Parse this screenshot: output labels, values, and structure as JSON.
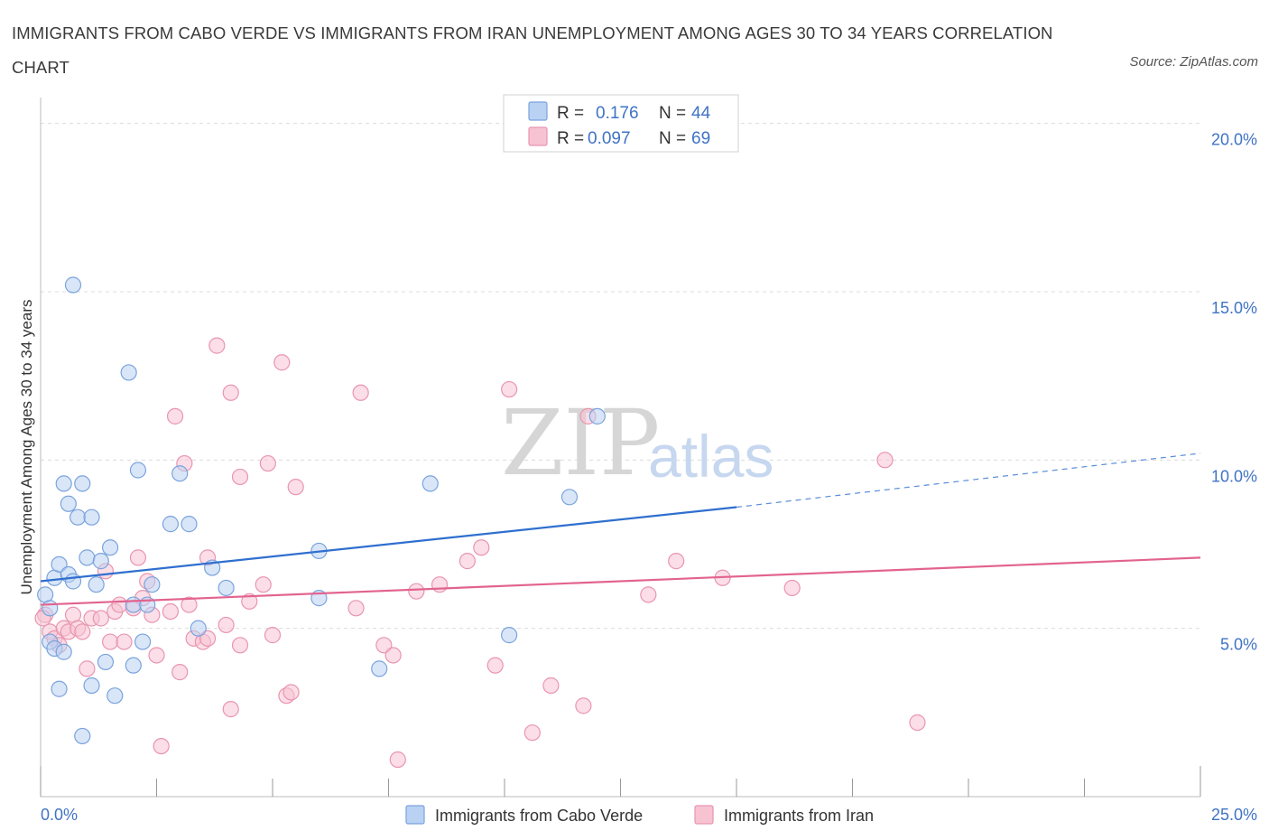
{
  "title": "IMMIGRANTS FROM CABO VERDE VS IMMIGRANTS FROM IRAN UNEMPLOYMENT AMONG AGES 30 TO 34 YEARS CORRELATION CHART",
  "source": "Source: ZipAtlas.com",
  "watermark": {
    "zip": "ZIP",
    "atlas": "atlas"
  },
  "colors": {
    "blue_fill": "#b9d1f3",
    "blue_stroke": "#7aa3dd",
    "blue_line": "#2f6fcf",
    "pink_fill": "#f7c3d3",
    "pink_stroke": "#e995b0",
    "pink_line": "#e2638f",
    "grid": "#dcdcdc",
    "axis_text": "#3f73c6"
  },
  "legend": {
    "rows": [
      {
        "r_label": "R = ",
        "r_value": "0.176",
        "n_label": "N = ",
        "n_value": "44"
      },
      {
        "r_label": "R = ",
        "r_value": "0.097",
        "n_label": "N = ",
        "n_value": "69"
      }
    ]
  },
  "bottom_legend": [
    "Immigrants from Cabo Verde",
    "Immigrants from Iran"
  ],
  "chart_data": {
    "type": "scatter",
    "title": "IMMIGRANTS FROM CABO VERDE VS IMMIGRANTS FROM IRAN UNEMPLOYMENT AMONG AGES 30 TO 34 YEARS CORRELATION CHART",
    "xlabel": "",
    "ylabel": "Unemployment Among Ages 30 to 34 years",
    "xlim": [
      0,
      25
    ],
    "ylim": [
      0,
      20.5
    ],
    "x_tick_labels": [
      "0.0%",
      "25.0%"
    ],
    "y_ticks": [
      5,
      10,
      15,
      20
    ],
    "y_tick_labels": [
      "5.0%",
      "10.0%",
      "15.0%",
      "20.0%"
    ],
    "grid": true,
    "legend_position": "top-center",
    "series": [
      {
        "name": "Immigrants from Cabo Verde",
        "r": 0.176,
        "n": 44,
        "trend": {
          "x0": 0,
          "y0": 6.4,
          "x1": 15,
          "y1": 8.6,
          "dashed_to_x": 25,
          "dashed_to_y": 10.2
        },
        "points": [
          [
            0.1,
            6.0
          ],
          [
            0.2,
            5.6
          ],
          [
            0.2,
            4.6
          ],
          [
            0.3,
            4.4
          ],
          [
            0.3,
            6.5
          ],
          [
            0.4,
            3.2
          ],
          [
            0.4,
            6.9
          ],
          [
            0.5,
            4.3
          ],
          [
            0.5,
            9.3
          ],
          [
            0.6,
            6.6
          ],
          [
            0.6,
            8.7
          ],
          [
            0.7,
            6.4
          ],
          [
            0.7,
            15.2
          ],
          [
            0.8,
            8.3
          ],
          [
            0.9,
            1.8
          ],
          [
            0.9,
            9.3
          ],
          [
            1.0,
            7.1
          ],
          [
            1.1,
            8.3
          ],
          [
            1.1,
            3.3
          ],
          [
            1.2,
            6.3
          ],
          [
            1.3,
            7.0
          ],
          [
            1.4,
            4.0
          ],
          [
            1.5,
            7.4
          ],
          [
            1.6,
            3.0
          ],
          [
            1.9,
            12.6
          ],
          [
            2.0,
            5.7
          ],
          [
            2.0,
            3.9
          ],
          [
            2.1,
            9.7
          ],
          [
            2.2,
            4.6
          ],
          [
            2.3,
            5.7
          ],
          [
            2.4,
            6.3
          ],
          [
            2.8,
            8.1
          ],
          [
            3.0,
            9.6
          ],
          [
            3.2,
            8.1
          ],
          [
            3.4,
            5.0
          ],
          [
            3.7,
            6.8
          ],
          [
            4.0,
            6.2
          ],
          [
            6.0,
            5.9
          ],
          [
            6.0,
            7.3
          ],
          [
            7.3,
            3.8
          ],
          [
            8.4,
            9.3
          ],
          [
            10.1,
            4.8
          ],
          [
            11.4,
            8.9
          ],
          [
            12.0,
            11.3
          ]
        ]
      },
      {
        "name": "Immigrants from Iran",
        "r": 0.097,
        "n": 69,
        "trend": {
          "x0": 0,
          "y0": 5.7,
          "x1": 25,
          "y1": 7.1
        },
        "points": [
          [
            0.1,
            5.4
          ],
          [
            0.2,
            4.9
          ],
          [
            0.3,
            4.7
          ],
          [
            0.4,
            4.5
          ],
          [
            0.5,
            5.0
          ],
          [
            0.6,
            4.9
          ],
          [
            0.7,
            5.4
          ],
          [
            0.8,
            5.0
          ],
          [
            0.9,
            4.9
          ],
          [
            1.0,
            3.8
          ],
          [
            1.1,
            5.3
          ],
          [
            1.3,
            5.3
          ],
          [
            1.4,
            6.7
          ],
          [
            1.5,
            4.6
          ],
          [
            1.6,
            5.5
          ],
          [
            1.7,
            5.7
          ],
          [
            1.8,
            4.6
          ],
          [
            2.0,
            5.6
          ],
          [
            2.1,
            7.1
          ],
          [
            2.2,
            5.9
          ],
          [
            2.3,
            6.4
          ],
          [
            2.4,
            5.4
          ],
          [
            2.5,
            4.2
          ],
          [
            2.6,
            1.5
          ],
          [
            2.8,
            5.5
          ],
          [
            2.9,
            11.3
          ],
          [
            3.0,
            3.7
          ],
          [
            3.1,
            9.9
          ],
          [
            3.2,
            5.7
          ],
          [
            3.3,
            4.7
          ],
          [
            3.5,
            4.6
          ],
          [
            3.6,
            4.7
          ],
          [
            3.6,
            7.1
          ],
          [
            3.8,
            13.4
          ],
          [
            4.0,
            5.1
          ],
          [
            4.1,
            12.0
          ],
          [
            4.1,
            2.6
          ],
          [
            4.3,
            4.5
          ],
          [
            4.3,
            9.5
          ],
          [
            4.5,
            5.8
          ],
          [
            4.8,
            6.3
          ],
          [
            4.9,
            9.9
          ],
          [
            5.0,
            4.8
          ],
          [
            5.2,
            12.9
          ],
          [
            5.3,
            3.0
          ],
          [
            5.4,
            3.1
          ],
          [
            5.5,
            9.2
          ],
          [
            6.8,
            5.6
          ],
          [
            6.9,
            12.0
          ],
          [
            7.4,
            4.5
          ],
          [
            7.6,
            4.2
          ],
          [
            7.7,
            1.1
          ],
          [
            8.1,
            6.1
          ],
          [
            8.6,
            6.3
          ],
          [
            9.2,
            7.0
          ],
          [
            9.5,
            7.4
          ],
          [
            9.8,
            3.9
          ],
          [
            10.1,
            12.1
          ],
          [
            10.6,
            1.9
          ],
          [
            11.0,
            3.3
          ],
          [
            11.7,
            2.7
          ],
          [
            11.8,
            11.3
          ],
          [
            13.1,
            6.0
          ],
          [
            13.7,
            7.0
          ],
          [
            14.7,
            6.5
          ],
          [
            16.2,
            6.2
          ],
          [
            18.2,
            10.0
          ],
          [
            18.9,
            2.2
          ],
          [
            0.05,
            5.3
          ]
        ]
      }
    ]
  }
}
